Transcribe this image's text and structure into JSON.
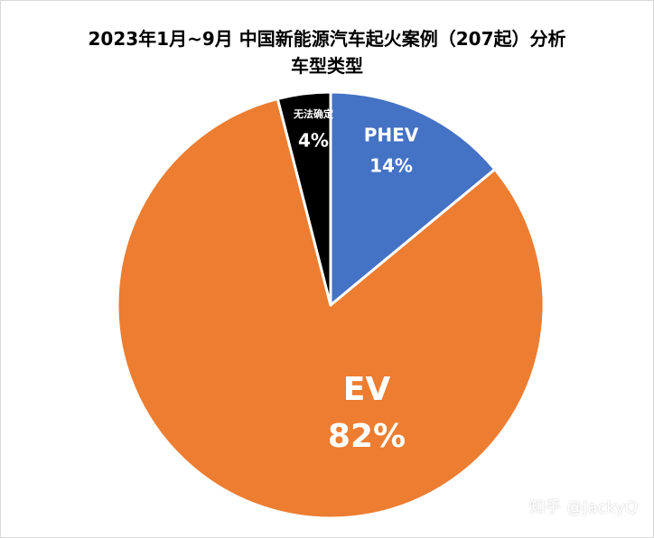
{
  "chart_data": {
    "type": "pie",
    "title_line1": "2023年1月~9月 中国新能源汽车起火案例（207起）分析",
    "title_line2": "车型类型",
    "slices": [
      {
        "name": "PHEV",
        "value": 14,
        "label": "14%",
        "color": "#4472c4"
      },
      {
        "name": "EV",
        "value": 82,
        "label": "82%",
        "color": "#ed7d31"
      },
      {
        "name": "无法确定",
        "value": 4,
        "label": "4%",
        "color": "#000000"
      }
    ],
    "start": "12 o'clock",
    "direction": "clockwise",
    "legend": "none"
  },
  "watermark": "知乎 @JackyQ"
}
